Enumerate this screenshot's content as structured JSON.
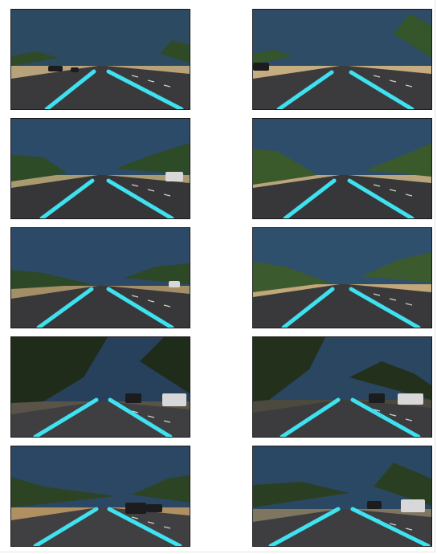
{
  "lane_color": "#3ff0ff",
  "frames": [
    {
      "scene": "sunny-highway",
      "sky": "#2d4a63",
      "ground": "#b8a27a",
      "road": "#3a3a3c",
      "trees": "#2f4a26"
    },
    {
      "scene": "sunny-highway",
      "sky": "#2e4c66",
      "ground": "#c6ad80",
      "road": "#3b3b3d",
      "trees": "#35552b"
    },
    {
      "scene": "hillside-highway",
      "sky": "#2c4b68",
      "ground": "#a99a70",
      "road": "#363638",
      "trees": "#2e4b27"
    },
    {
      "scene": "hillside-highway",
      "sky": "#2d4d6a",
      "ground": "#b9a47b",
      "road": "#37373a",
      "trees": "#3a5a2c"
    },
    {
      "scene": "highway-overpass",
      "sky": "#2c4a68",
      "ground": "#a38e66",
      "road": "#38383a",
      "trees": "#2d4826"
    },
    {
      "scene": "hillside-highway",
      "sky": "#2f506d",
      "ground": "#c2a77a",
      "road": "#39393b",
      "trees": "#3b5a2e"
    },
    {
      "scene": "shaded-road",
      "sky": "#27415c",
      "ground": "#5a5448",
      "road": "#3f3f41",
      "trees": "#1f2c1a"
    },
    {
      "scene": "shaded-road",
      "sky": "#2a4660",
      "ground": "#4c4a3e",
      "road": "#3c3c3e",
      "trees": "#22301c"
    },
    {
      "scene": "curving-road",
      "sky": "#2b4763",
      "ground": "#b09060",
      "road": "#404042",
      "trees": "#2c4424"
    },
    {
      "scene": "curving-road",
      "sky": "#2a4864",
      "ground": "#7e7660",
      "road": "#3e3e40",
      "trees": "#2a3f22"
    }
  ]
}
